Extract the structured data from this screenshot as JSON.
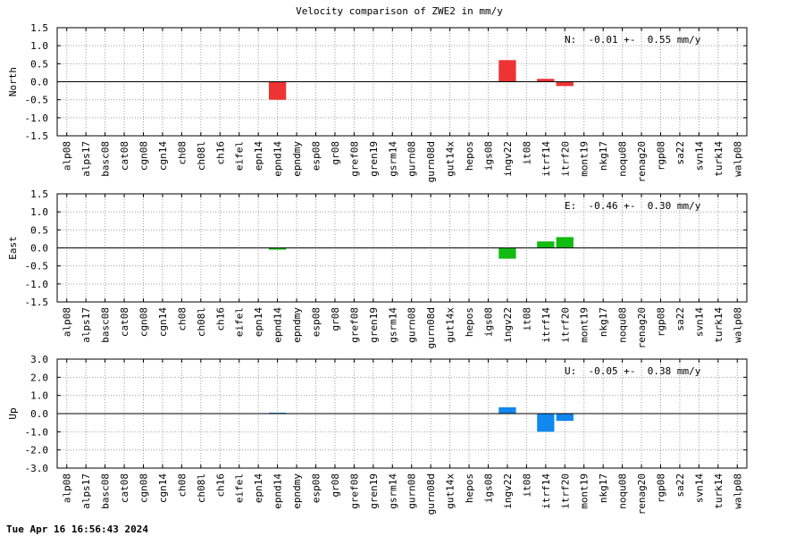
{
  "title": "Velocity comparison of ZWE2 in mm/y",
  "footer": "Tue Apr 16 16:56:43 2024",
  "chart_data": {
    "type": "bar",
    "categories": [
      "alp08",
      "alps17",
      "basc08",
      "cat08",
      "cgn08",
      "cgn14",
      "ch08",
      "ch08l",
      "ch16",
      "eifel",
      "epn14",
      "epnd14",
      "epndmy",
      "esp08",
      "gr08",
      "gref08",
      "gren19",
      "gsrm14",
      "gurn08",
      "gurn08d",
      "gut14x",
      "hepos",
      "igs08",
      "ingv22",
      "it08",
      "itrf14",
      "itrf20",
      "mont19",
      "nkg17",
      "noqu08",
      "renag20",
      "rgp08",
      "sa22",
      "svn14",
      "turk14",
      "walp08"
    ],
    "panels": [
      {
        "ylabel": "North",
        "summary": "N:  -0.01 +-  0.55 mm/y",
        "color": "#ee3333",
        "ylim": [
          -1.5,
          1.5
        ],
        "yticks": [
          1.5,
          1.0,
          0.5,
          0.0,
          -0.5,
          -1.0,
          -1.5
        ],
        "ytick_labels": [
          "1.5",
          "1.0",
          "0.5",
          "0.0",
          "-0.5",
          "-1.0",
          "-1.5"
        ],
        "values": {
          "epnd14": -0.5,
          "ingv22": 0.6,
          "itrf14": 0.08,
          "itrf20": -0.12
        }
      },
      {
        "ylabel": "East",
        "summary": "E:  -0.46 +-  0.30 mm/y",
        "color": "#11bb11",
        "ylim": [
          -1.5,
          1.5
        ],
        "yticks": [
          1.5,
          1.0,
          0.5,
          0.0,
          -0.5,
          -1.0,
          -1.5
        ],
        "ytick_labels": [
          "1.5",
          "1.0",
          "0.5",
          "0.0",
          "-0.5",
          "-1.0",
          "-1.5"
        ],
        "values": {
          "epnd14": -0.05,
          "ingv22": -0.3,
          "itrf14": 0.18,
          "itrf20": 0.3
        }
      },
      {
        "ylabel": "Up",
        "summary": "U:  -0.05 +-  0.38 mm/y",
        "color": "#1188ee",
        "ylim": [
          -3.0,
          3.0
        ],
        "yticks": [
          3.0,
          2.0,
          1.0,
          0.0,
          -1.0,
          -2.0,
          -3.0
        ],
        "ytick_labels": [
          "3.0",
          "2.0",
          "1.0",
          "0.0",
          "-1.0",
          "-2.0",
          "-3.0"
        ],
        "values": {
          "epnd14": 0.05,
          "ingv22": 0.35,
          "itrf14": -1.0,
          "itrf20": -0.4
        }
      }
    ]
  }
}
